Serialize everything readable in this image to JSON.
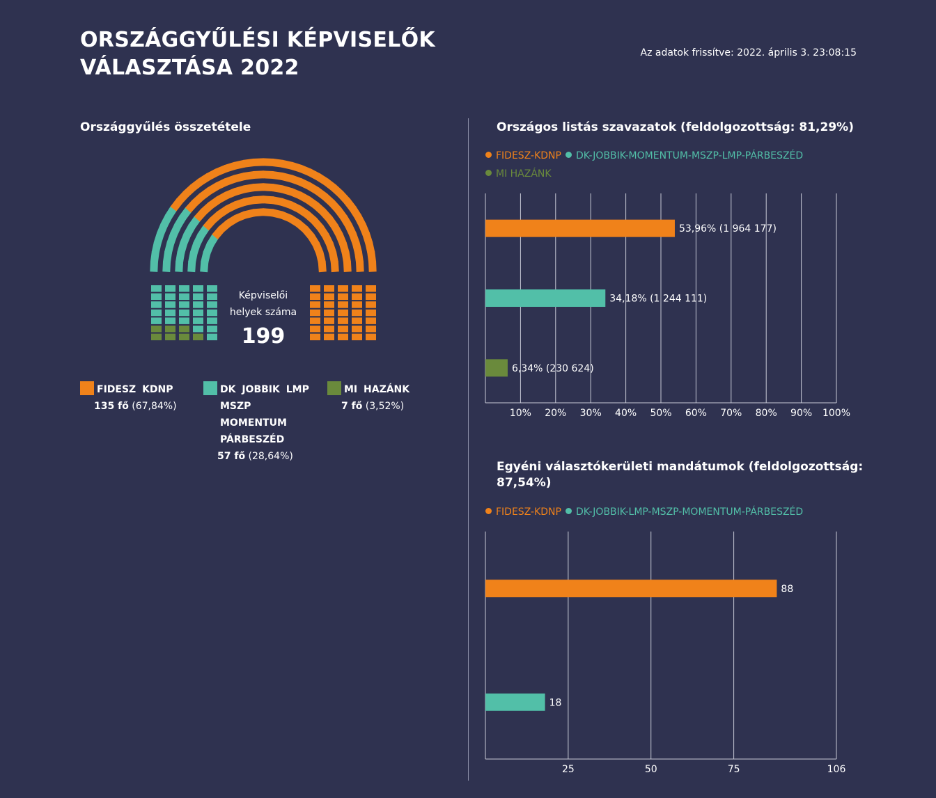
{
  "header": {
    "title": "ORSZÁGGYŰLÉSI KÉPVISELŐK VÁLASZTÁSA 2022",
    "updated": "Az adatok frissítve: 2022. április 3. 23:08:15"
  },
  "parliament": {
    "title": "Országgyűlés összetétele",
    "center_label": "Képviselői helyek száma",
    "total": "199",
    "parties": [
      {
        "name": "FIDESZ KDNP",
        "seats": 135,
        "seats_label": "135 fő",
        "pct_label": "(67,84%)",
        "color": "#f0821a"
      },
      {
        "name": "DK JOBBIK LMP\nMSZP\nMOMENTUM\nPÁRBESZÉD",
        "seats": 57,
        "seats_label": "57 fő",
        "pct_label": "(28,64%)",
        "color": "#52bfa8"
      },
      {
        "name": "MI HAZÁNK",
        "seats": 7,
        "seats_label": "7 fő",
        "pct_label": "(3,52%)",
        "color": "#6a8a3c"
      }
    ]
  },
  "list_votes": {
    "title": "Országos listás szavazatok (feldolgozottság: 81,29%)",
    "legend": [
      {
        "label": "FIDESZ-KDNP",
        "color": "#f0821a"
      },
      {
        "label": "DK-JOBBIK-MOMENTUM-MSZP-LMP-PÁRBESZÉD",
        "color": "#52bfa8"
      },
      {
        "label": "MI HAZÁNK",
        "color": "#6a8a3c"
      }
    ]
  },
  "district_seats": {
    "title": "Egyéni választókerületi mandátumok (feldolgozottság: 87,54%)",
    "legend": [
      {
        "label": "FIDESZ-KDNP",
        "color": "#f0821a"
      },
      {
        "label": "DK-JOBBIK-LMP-MSZP-MOMENTUM-PÁRBESZÉD",
        "color": "#52bfa8"
      }
    ]
  },
  "chart_data": [
    {
      "type": "bar",
      "orientation": "horizontal",
      "title": "Országos listás szavazatok (feldolgozottság: 81,29%)",
      "categories": [
        "FIDESZ-KDNP",
        "DK-JOBBIK-MOMENTUM-MSZP-LMP-PÁRBESZÉD",
        "MI HAZÁNK"
      ],
      "values": [
        53.96,
        34.18,
        6.34
      ],
      "data_labels": [
        "53,96% (1 964 177)",
        "34,18% (1 244 111)",
        "6,34% (230 624)"
      ],
      "colors": [
        "#f0821a",
        "#52bfa8",
        "#6a8a3c"
      ],
      "xlim": [
        0,
        100
      ],
      "xticks": [
        10,
        20,
        30,
        40,
        50,
        60,
        70,
        80,
        90,
        100
      ],
      "xtick_labels": [
        "10%",
        "20%",
        "30%",
        "40%",
        "50%",
        "60%",
        "70%",
        "80%",
        "90%",
        "100%"
      ],
      "grid": true
    },
    {
      "type": "bar",
      "orientation": "horizontal",
      "title": "Egyéni választókerületi mandátumok (feldolgozottság: 87,54%)",
      "categories": [
        "FIDESZ-KDNP",
        "DK-JOBBIK-LMP-MSZP-MOMENTUM-PÁRBESZÉD"
      ],
      "values": [
        88,
        18
      ],
      "data_labels": [
        "88",
        "18"
      ],
      "colors": [
        "#f0821a",
        "#52bfa8"
      ],
      "xlim": [
        0,
        106
      ],
      "xticks": [
        25,
        50,
        75,
        106
      ],
      "xtick_labels": [
        "25",
        "50",
        "75",
        "106"
      ],
      "grid": true
    }
  ]
}
